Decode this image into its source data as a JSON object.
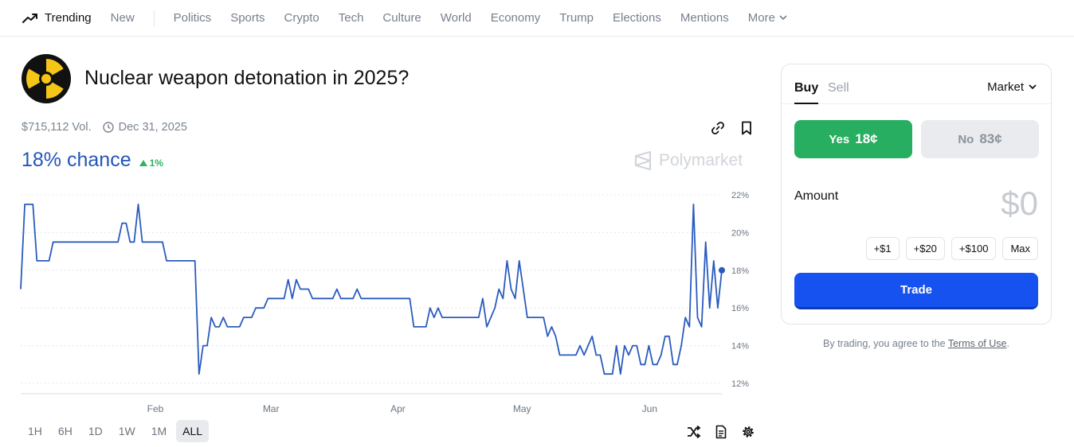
{
  "nav": {
    "trending": "Trending",
    "new": "New",
    "items": [
      "Politics",
      "Sports",
      "Crypto",
      "Tech",
      "Culture",
      "World",
      "Economy",
      "Trump",
      "Elections",
      "Mentions"
    ],
    "more": "More"
  },
  "market": {
    "title": "Nuclear weapon detonation in 2025?",
    "volume": "$715,112 Vol.",
    "end_date": "Dec 31, 2025",
    "chance": "18% chance",
    "delta": "1%",
    "watermark": "Polymarket"
  },
  "colors": {
    "line": "#2a5bbf",
    "yes": "#27ae60",
    "trade": "#1652f0",
    "chance_text": "#2456b8",
    "delta_up": "#2eb35f"
  },
  "chart_data": {
    "type": "line",
    "x_ticks": [
      "Feb",
      "Mar",
      "Apr",
      "May",
      "Jun"
    ],
    "y_ticks": [
      "22%",
      "20%",
      "18%",
      "16%",
      "14%",
      "12%"
    ],
    "ylim": [
      12,
      22
    ],
    "grid": true,
    "series": [
      {
        "values": [
          17,
          21.5,
          21.5,
          21.5,
          18.5,
          18.5,
          18.5,
          18.5,
          19.5,
          19.5,
          19.5,
          19.5,
          19.5,
          19.5,
          19.5,
          19.5,
          19.5,
          19.5,
          19.5,
          19.5,
          19.5,
          19.5,
          19.5,
          19.5,
          19.5,
          20.5,
          20.5,
          19.5,
          19.5,
          21.5,
          19.5,
          19.5,
          19.5,
          19.5,
          19.5,
          19.5,
          18.5,
          18.5,
          18.5,
          18.5,
          18.5,
          18.5,
          18.5,
          18.5,
          12.5,
          14,
          14,
          15.5,
          15,
          15,
          15.5,
          15,
          15,
          15,
          15,
          15.5,
          15.5,
          15.5,
          16,
          16,
          16,
          16.5,
          16.5,
          16.5,
          16.5,
          16.5,
          17.5,
          16.5,
          17.5,
          17,
          17,
          17,
          16.5,
          16.5,
          16.5,
          16.5,
          16.5,
          16.5,
          17,
          16.5,
          16.5,
          16.5,
          16.5,
          17,
          16.5,
          16.5,
          16.5,
          16.5,
          16.5,
          16.5,
          16.5,
          16.5,
          16.5,
          16.5,
          16.5,
          16.5,
          16.5,
          15,
          15,
          15,
          15,
          16,
          15.5,
          16,
          15.5,
          15.5,
          15.5,
          15.5,
          15.5,
          15.5,
          15.5,
          15.5,
          15.5,
          15.5,
          16.5,
          15,
          15.5,
          16,
          17,
          16.5,
          18.5,
          17,
          16.5,
          18.5,
          17,
          15.5,
          15.5,
          15.5,
          15.5,
          15.5,
          14.5,
          15,
          14.5,
          13.5,
          13.5,
          13.5,
          13.5,
          13.5,
          14,
          13.5,
          14,
          14.5,
          13.5,
          13.5,
          12.5,
          12.5,
          12.5,
          14,
          12.5,
          14,
          13.5,
          14,
          14,
          13,
          13,
          14,
          13,
          13,
          13.5,
          14.5,
          14.5,
          13,
          13,
          14,
          15.5,
          15,
          21.5,
          15.5,
          15,
          19.5,
          16,
          18.5,
          16,
          18
        ]
      }
    ]
  },
  "timeframes": [
    "1H",
    "6H",
    "1D",
    "1W",
    "1M",
    "ALL"
  ],
  "active_timeframe": "ALL",
  "trade_panel": {
    "buy": "Buy",
    "sell": "Sell",
    "order_type": "Market",
    "yes_label": "Yes",
    "yes_price": "18¢",
    "no_label": "No",
    "no_price": "83¢",
    "amount_label": "Amount",
    "amount_value": "$0",
    "quick_amounts": [
      "+$1",
      "+$20",
      "+$100",
      "Max"
    ],
    "trade_button": "Trade",
    "disclaimer_prefix": "By trading, you agree to the ",
    "terms_link": "Terms of Use",
    "disclaimer_suffix": "."
  }
}
